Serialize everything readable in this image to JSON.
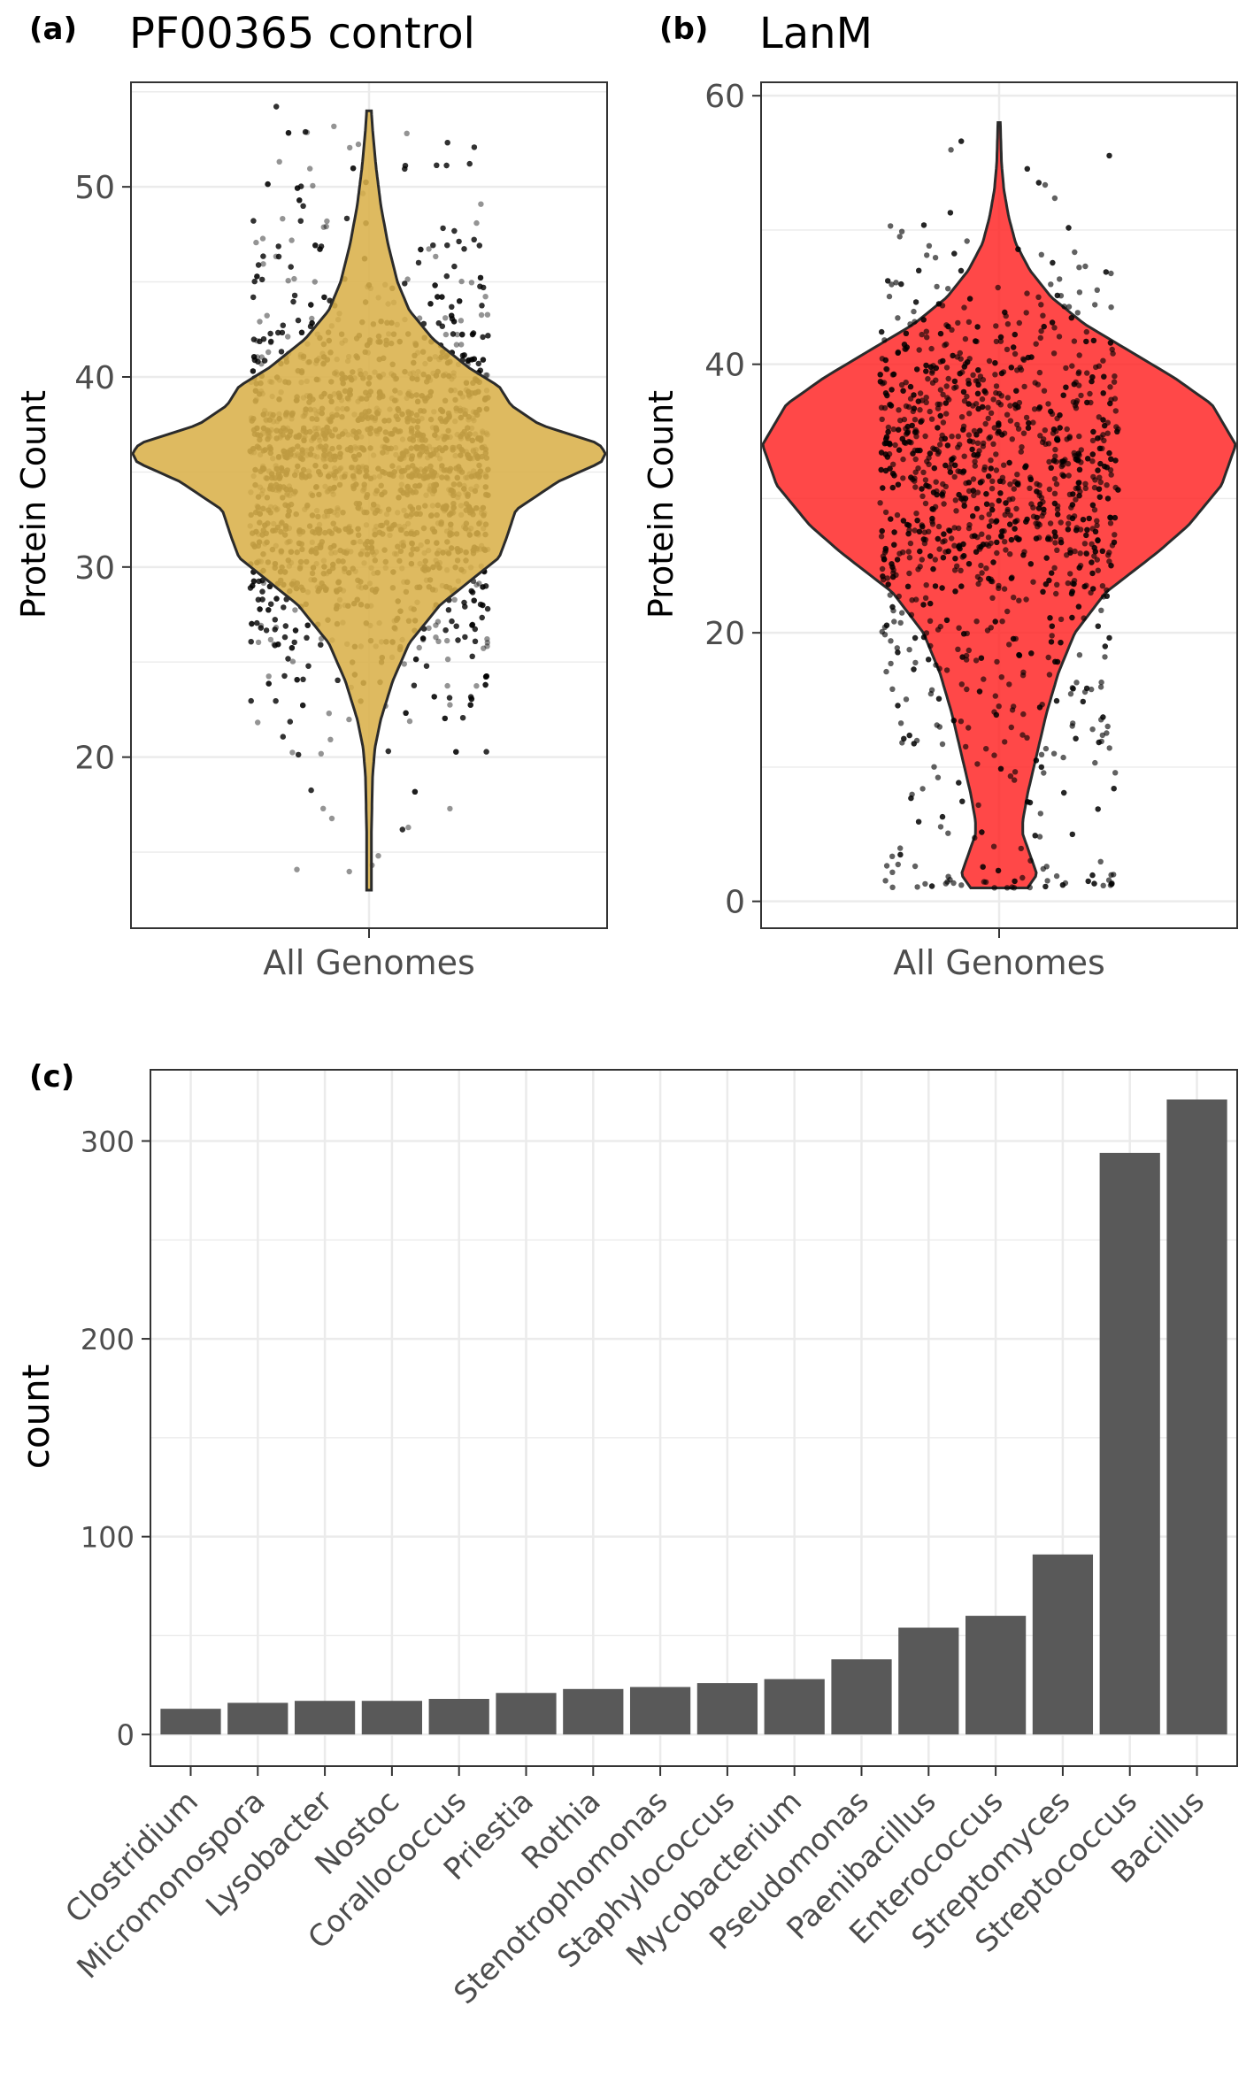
{
  "panels": {
    "a": {
      "tag": "(a)",
      "title": "PF00365 control",
      "ylabel": "Protein Count",
      "xtick": "All Genomes",
      "colors": {
        "violin": "#dab04a",
        "points": "#000000",
        "outline": "#2b2b2b"
      }
    },
    "b": {
      "tag": "(b)",
      "title": "LanM",
      "ylabel": "Protein Count",
      "xtick": "All Genomes",
      "colors": {
        "violin": "#ff2020",
        "points": "#000000",
        "outline": "#2b2b2b"
      }
    },
    "c": {
      "tag": "(c)",
      "ylabel": "count",
      "colors": {
        "bar": "#595959"
      }
    }
  },
  "chart_data": [
    {
      "panel": "a",
      "type": "violin",
      "title": "PF00365 control",
      "xlabel": "",
      "ylabel": "Protein Count",
      "categories": [
        "All Genomes"
      ],
      "ylim": [
        11,
        55.5
      ],
      "yticks": [
        20,
        30,
        40,
        50
      ],
      "range": [
        13,
        54
      ],
      "peak": 36,
      "grid": true,
      "jitter_points": true,
      "density_profile": [
        [
          13,
          0.01
        ],
        [
          16,
          0.01
        ],
        [
          19,
          0.015
        ],
        [
          20.5,
          0.025
        ],
        [
          22,
          0.05
        ],
        [
          24,
          0.1
        ],
        [
          26,
          0.17
        ],
        [
          28,
          0.3
        ],
        [
          29.5,
          0.45
        ],
        [
          30.5,
          0.55
        ],
        [
          31.5,
          0.58
        ],
        [
          33,
          0.62
        ],
        [
          34.5,
          0.8
        ],
        [
          35.5,
          0.98
        ],
        [
          36,
          1.0
        ],
        [
          36.5,
          0.97
        ],
        [
          37.5,
          0.72
        ],
        [
          38.5,
          0.6
        ],
        [
          39.5,
          0.55
        ],
        [
          40.5,
          0.42
        ],
        [
          42,
          0.27
        ],
        [
          43.5,
          0.17
        ],
        [
          45,
          0.12
        ],
        [
          47,
          0.08
        ],
        [
          49,
          0.05
        ],
        [
          51,
          0.03
        ],
        [
          53,
          0.015
        ],
        [
          54,
          0.01
        ]
      ]
    },
    {
      "panel": "b",
      "type": "violin",
      "title": "LanM",
      "xlabel": "",
      "ylabel": "Protein Count",
      "categories": [
        "All Genomes"
      ],
      "ylim": [
        -2,
        61
      ],
      "yticks": [
        0,
        20,
        40,
        60
      ],
      "range": [
        1,
        58
      ],
      "peak": 34,
      "grid": true,
      "jitter_points": true,
      "density_profile": [
        [
          1,
          0.12
        ],
        [
          2,
          0.16
        ],
        [
          3,
          0.14
        ],
        [
          5,
          0.1
        ],
        [
          6,
          0.1
        ],
        [
          8,
          0.12
        ],
        [
          11,
          0.16
        ],
        [
          14,
          0.2
        ],
        [
          17,
          0.25
        ],
        [
          20,
          0.32
        ],
        [
          23,
          0.45
        ],
        [
          26,
          0.67
        ],
        [
          28,
          0.8
        ],
        [
          31,
          0.94
        ],
        [
          34,
          1.0
        ],
        [
          37,
          0.9
        ],
        [
          39,
          0.74
        ],
        [
          41,
          0.55
        ],
        [
          43,
          0.36
        ],
        [
          45,
          0.22
        ],
        [
          47,
          0.13
        ],
        [
          49,
          0.07
        ],
        [
          51,
          0.04
        ],
        [
          53,
          0.02
        ],
        [
          55,
          0.01
        ],
        [
          58,
          0.005
        ]
      ]
    },
    {
      "panel": "c",
      "type": "bar",
      "xlabel": "",
      "ylabel": "count",
      "categories": [
        "Clostridium",
        "Micromonospora",
        "Lysobacter",
        "Nostoc",
        "Corallococcus",
        "Priestia",
        "Rothia",
        "Stenotrophomonas",
        "Staphylococcus",
        "Mycobacterium",
        "Pseudomonas",
        "Paenibacillus",
        "Enterococcus",
        "Streptomyces",
        "Streptococcus",
        "Bacillus"
      ],
      "values": [
        13,
        16,
        17,
        17,
        18,
        21,
        23,
        24,
        26,
        28,
        38,
        54,
        60,
        91,
        294,
        321
      ],
      "ylim": [
        -16,
        336
      ],
      "yticks": [
        0,
        100,
        200,
        300
      ],
      "grid": true
    }
  ]
}
